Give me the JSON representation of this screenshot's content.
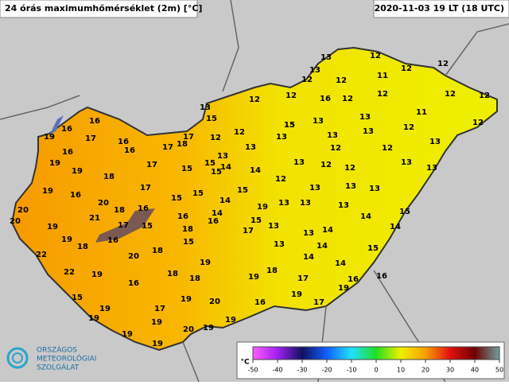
{
  "header": {
    "title": "24 órás maximumhőmérséklet (2m) [°C]",
    "timestamp": "2020-11-03 19 LT (18 UTC)"
  },
  "stations": [
    13,
    12,
    12,
    13,
    12,
    11,
    12,
    12,
    12,
    12,
    12,
    12,
    16,
    12,
    12,
    13,
    15,
    15,
    11,
    13,
    13,
    12,
    15,
    16,
    16,
    12,
    13,
    13,
    12,
    17,
    13,
    19,
    17,
    16,
    17,
    18,
    12,
    13,
    13,
    12,
    12,
    16,
    16,
    13,
    15,
    19,
    17,
    15,
    14,
    12,
    13,
    13,
    12,
    19,
    15,
    14,
    13,
    18,
    12,
    17,
    15,
    13,
    13,
    13,
    19,
    16,
    15,
    20,
    15,
    14,
    18,
    16,
    13,
    13,
    13,
    20,
    14,
    20,
    21,
    16,
    16,
    15,
    13,
    14,
    15,
    19,
    17,
    15,
    18,
    17,
    13,
    14,
    14,
    19,
    18,
    16,
    15,
    13,
    14,
    15,
    22,
    20,
    18,
    14,
    19,
    14,
    22,
    19,
    18,
    18,
    19,
    18,
    17,
    16,
    16,
    16,
    19,
    15,
    19,
    19,
    20,
    16,
    19,
    17,
    17,
    19,
    19,
    19,
    19,
    20,
    19,
    19,
    19
  ],
  "colorbar": {
    "unit": "°C",
    "ticks": [
      -50,
      -40,
      -30,
      -20,
      -10,
      0,
      10,
      20,
      30,
      40,
      50
    ]
  },
  "logo": {
    "line1": "ORSZÁGOS",
    "line2": "METEOROLÓGIAI",
    "line3": "SZOLGÁLAT"
  }
}
